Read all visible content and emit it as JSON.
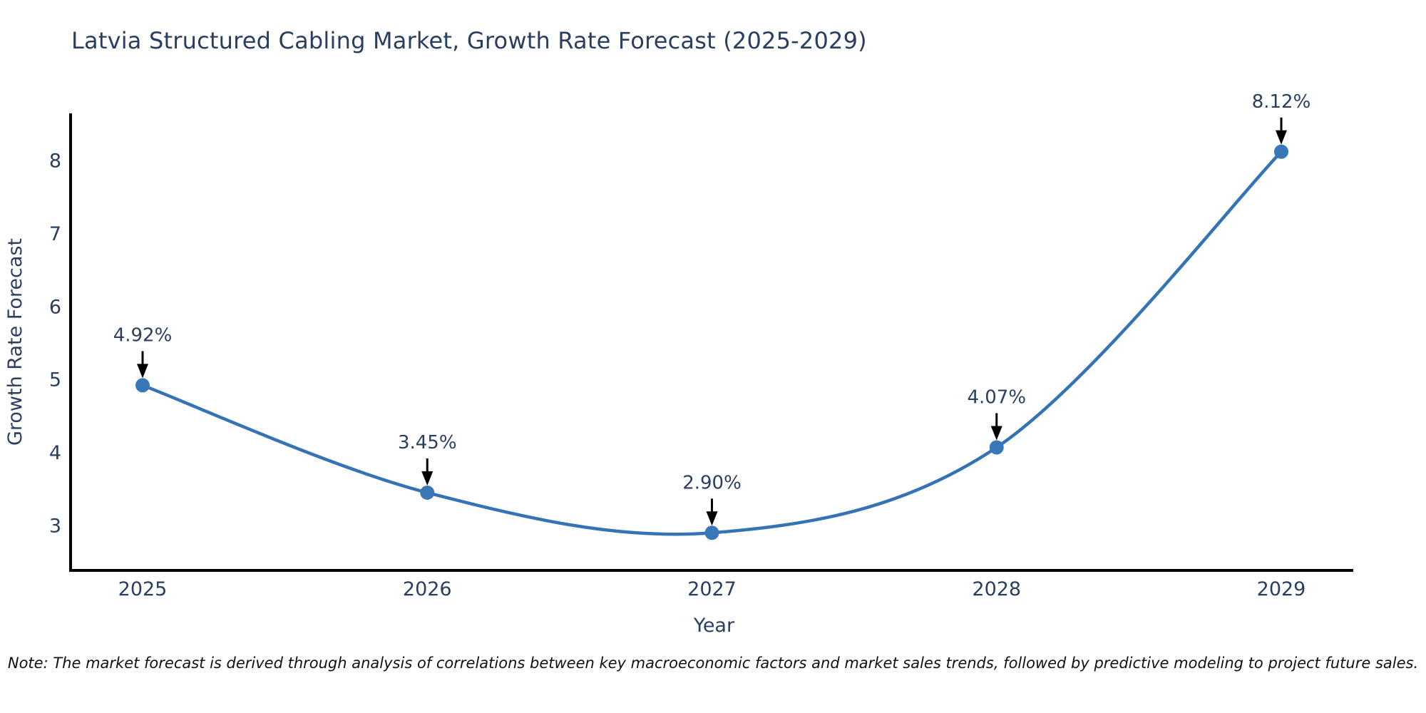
{
  "title": "Latvia Structured Cabling Market, Growth Rate Forecast (2025-2029)",
  "note": "Note: The market forecast is derived through analysis of correlations between key macroeconomic factors and market sales trends, followed by predictive modeling to project future sales.",
  "colors": {
    "line": "#3474b4",
    "marker": "#3878b8",
    "axis": "#000000",
    "arrow": "#000000",
    "text": "#2a3f5f",
    "note_text": "#111111",
    "background": "#ffffff"
  },
  "chart_data": {
    "type": "line",
    "title": "Latvia Structured Cabling Market, Growth Rate Forecast (2025-2029)",
    "xlabel": "Year",
    "ylabel": "Growth Rate Forecast",
    "x": [
      2025,
      2026,
      2027,
      2028,
      2029
    ],
    "categories": [
      "2025",
      "2026",
      "2027",
      "2028",
      "2029"
    ],
    "values": [
      4.92,
      3.45,
      2.9,
      4.07,
      8.12
    ],
    "point_labels": [
      "4.92%",
      "3.45%",
      "2.90%",
      "4.07%",
      "8.12%"
    ],
    "yticks": [
      3,
      4,
      5,
      6,
      7,
      8
    ],
    "ylim": [
      2.385,
      8.645
    ],
    "grid": false,
    "legend": "none",
    "line_shape": "spline",
    "annotations": "value labels with downward arrows above each point"
  }
}
